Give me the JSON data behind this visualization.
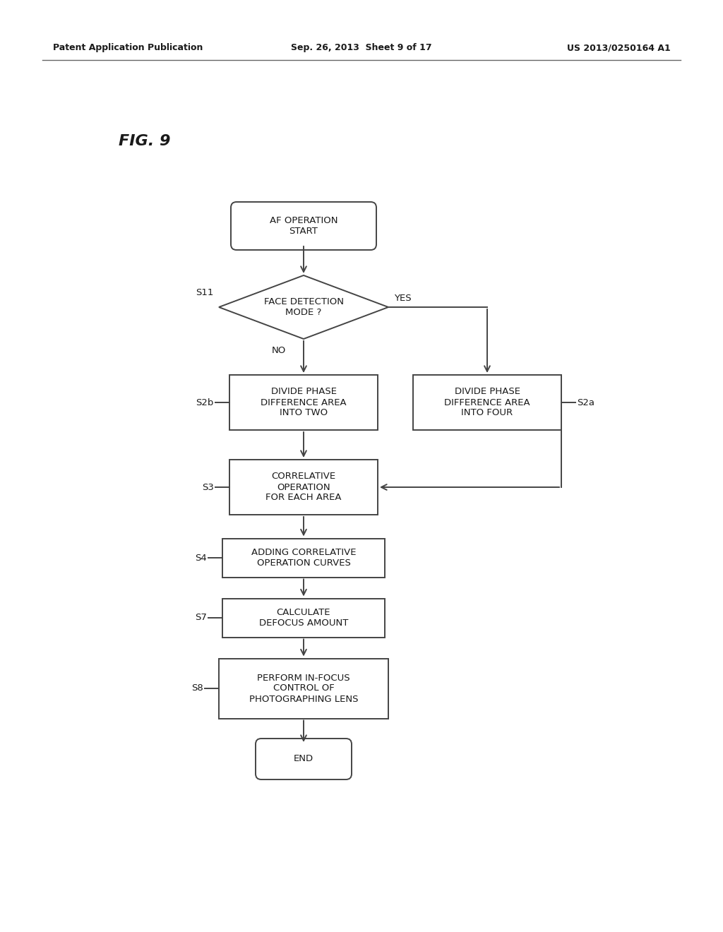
{
  "bg_color": "#ffffff",
  "header_left": "Patent Application Publication",
  "header_center": "Sep. 26, 2013  Sheet 9 of 17",
  "header_right": "US 2013/0250164 A1",
  "fig_label": "FIG. 9",
  "text_color": "#1a1a1a",
  "box_color": "#ffffff",
  "box_edge": "#444444",
  "line_color": "#444444"
}
